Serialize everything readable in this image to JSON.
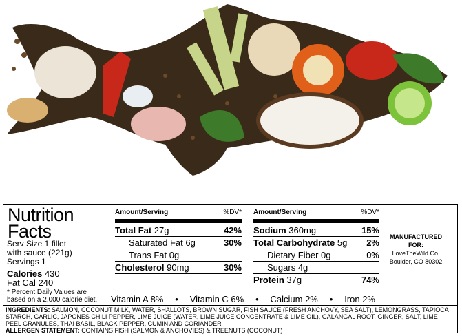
{
  "nutrition": {
    "title_line1": "Nutrition",
    "title_line2": "Facts",
    "serving_size_line1": "Serv Size 1 fillet",
    "serving_size_line2": "with sauce (221g)",
    "servings": "Servings 1",
    "calories_label": "Calories",
    "calories_value": "430",
    "fat_cal": "Fat Cal 240",
    "footnote_line1": "* Percent Daily Values are",
    "footnote_line2": "based on a 2,000 calorie diet.",
    "amount_header": "Amount/Serving",
    "dv_header": "%DV*",
    "left_rows": [
      {
        "label": "Total Fat",
        "amount": "27g",
        "dv": "42%"
      },
      {
        "label": "Saturated Fat",
        "amount": "6g",
        "dv": "30%"
      },
      {
        "label": "Trans Fat",
        "amount": "0g",
        "dv": ""
      },
      {
        "label": "Cholesterol",
        "amount": "90mg",
        "dv": "30%"
      }
    ],
    "right_rows": [
      {
        "label": "Sodium",
        "amount": "360mg",
        "dv": "15%"
      },
      {
        "label": "Total Carbohydrate",
        "amount": "5g",
        "dv": "2%"
      },
      {
        "label": "Dietary Fiber",
        "amount": "0g",
        "dv": "0%"
      },
      {
        "label": "Sugars",
        "amount": "4g",
        "dv": ""
      },
      {
        "label": "Protein",
        "amount": "37g",
        "dv": "74%"
      }
    ],
    "vitamins": [
      "Vitamin A 8%",
      "Vitamin C 6%",
      "Calcium 2%",
      "Iron 2%"
    ],
    "bullet": "•",
    "ingredients_label": "INGREDIENTS:",
    "ingredients_text": "SALMON, COCONUT MILK, WATER, SHALLOTS, BROWN SUGAR, FISH SAUCE (FRESH ANCHOVY, SEA SALT), LEMONGRASS, TAPIOCA STARCH, GARLIC, JAPONES CHILI PEPPER, LIME JUICE (WATER, LIME JUICE CONCENTRATE & LIME OIL), GALANGAL ROOT, GINGER, SALT, LIME PEEL GRANULES, THAI BASIL, BLACK PEPPER, CUMIN AND CORIANDER",
    "allergen_label": "ALLERGEN STATEMENT:",
    "allergen_text": "CONTAINS FISH (SALMON & ANCHOVIES) & TREENUTS (COCONUT)"
  },
  "manufacturer": {
    "line1": "MANUFACTURED",
    "line2": "FOR:",
    "name": "LoveTheWild Co.",
    "address": "Boulder, CO 80302"
  },
  "colors": {
    "pepper": "#3a2a1a",
    "garlic": "#ece4d6",
    "lemongrass": "#c6d58a",
    "chili_red": "#c8281a",
    "lime": "#7cc23a",
    "basil": "#3d7a2a",
    "coconut": "#f4f1ea",
    "orange_pepper": "#e0601a"
  },
  "icons": [
    "fish-silhouette-image"
  ]
}
